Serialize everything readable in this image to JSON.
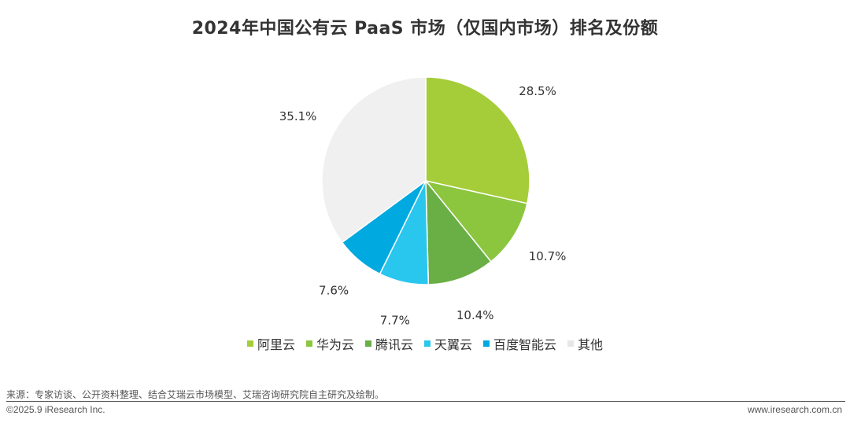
{
  "chart_data": {
    "type": "pie",
    "title": "2024年中国公有云 PaaS 市场（仅国内市场）排名及份额",
    "categories": [
      "阿里云",
      "华为云",
      "腾讯云",
      "天翼云",
      "百度智能云",
      "其他"
    ],
    "values": [
      28.5,
      10.7,
      10.4,
      7.7,
      7.6,
      35.1
    ],
    "value_labels": [
      "28.5%",
      "10.7%",
      "10.4%",
      "7.7%",
      "7.6%",
      "35.1%"
    ],
    "colors": [
      "#a5cd39",
      "#8cc63f",
      "#6aaf45",
      "#29c6ee",
      "#00a9e0",
      "#f0f0f0"
    ],
    "unit": "%",
    "legend_position": "bottom",
    "start_angle": "12 o'clock",
    "direction": "clockwise"
  },
  "footer": {
    "source": "来源：专家访谈、公开资料整理、结合艾瑞云市场模型、艾瑞咨询研究院自主研究及绘制。",
    "copyright": "©2025.9 iResearch Inc.",
    "url": "www.iresearch.com.cn"
  }
}
